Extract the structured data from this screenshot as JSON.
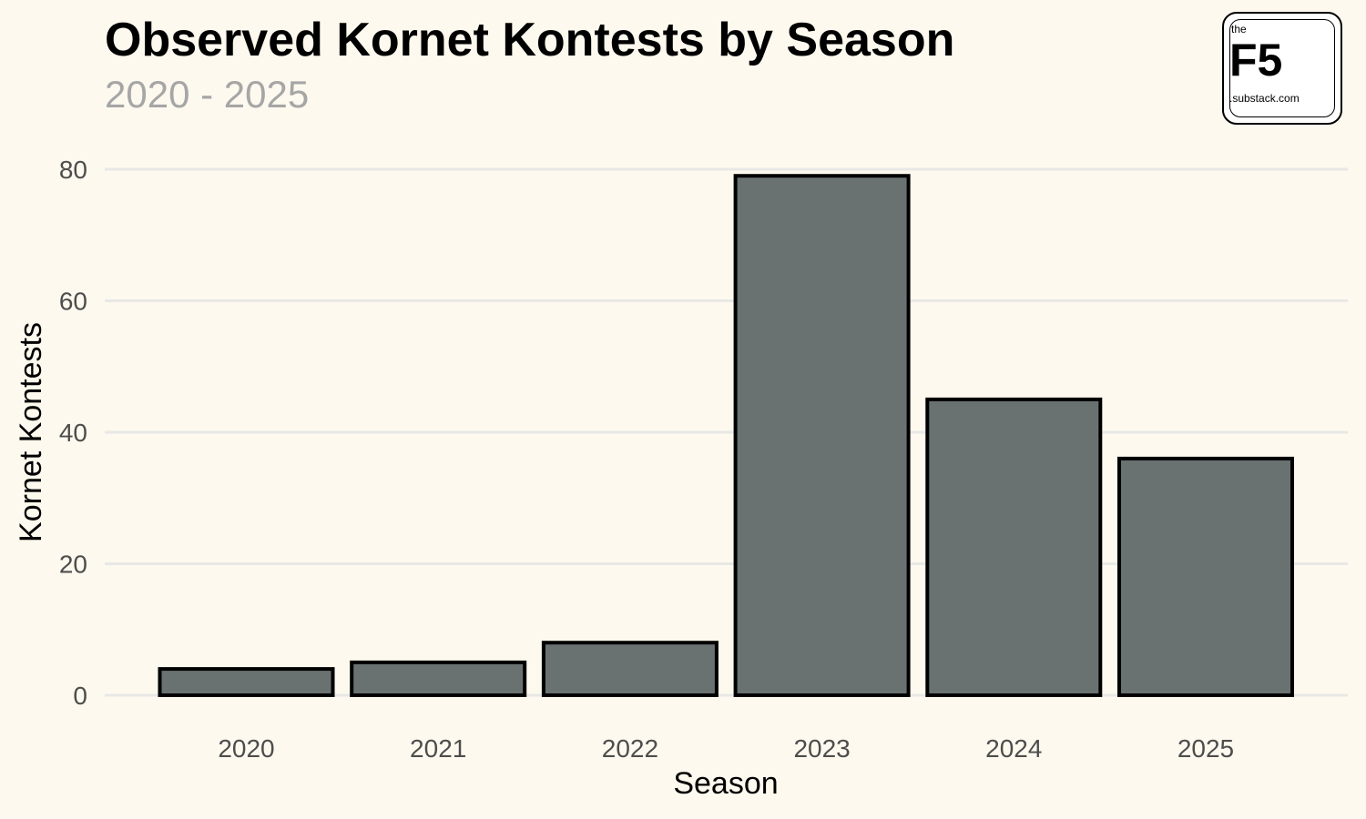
{
  "chart_data": {
    "type": "bar",
    "title": "Observed Kornet Kontests by Season",
    "subtitle": "2020 - 2025",
    "xlabel": "Season",
    "ylabel": "Kornet Kontests",
    "categories": [
      "2020",
      "2021",
      "2022",
      "2023",
      "2024",
      "2025"
    ],
    "values": [
      4,
      5,
      8,
      79,
      45,
      36
    ],
    "ylim": [
      0,
      80
    ],
    "yticks": [
      "0",
      "20",
      "40",
      "60",
      "80"
    ],
    "grid": "horizontal",
    "legend": "none",
    "bar_color": "#6a7171",
    "bar_outline": "#000000",
    "background": "#fdf9ee",
    "grid_color": "#e8e8e6"
  },
  "logo": {
    "the": "the",
    "main": "F5",
    "sub": ".substack.com"
  }
}
